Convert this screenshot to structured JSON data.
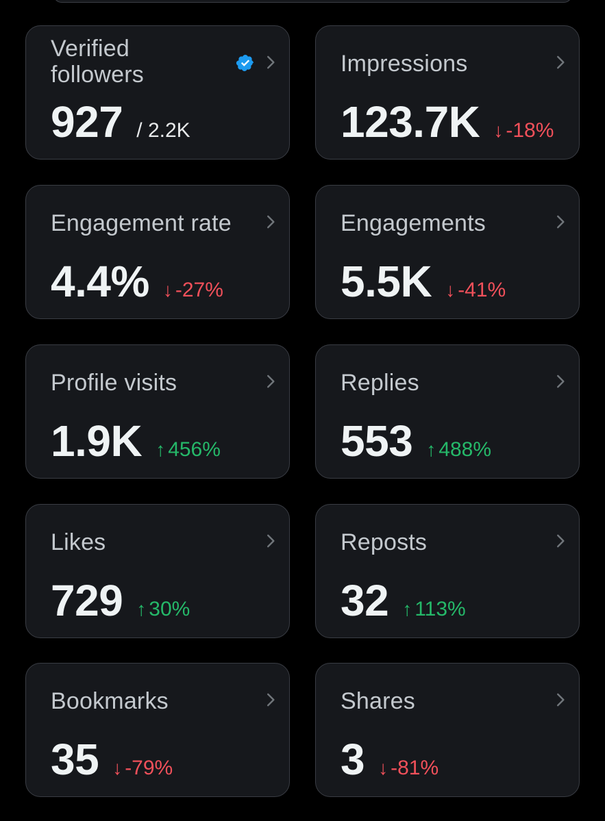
{
  "colors": {
    "background": "#000000",
    "card": "#16181c",
    "border": "#3a3d44",
    "title": "#c4c9ce",
    "value": "#eff3f4",
    "down": "#f0505a",
    "up": "#25b869",
    "verified": "#1d9bf0",
    "chevron": "#71767b"
  },
  "cards": [
    {
      "title_line1": "Verified",
      "title_line2": "followers",
      "value": "927",
      "sub": "/ 2.2K",
      "icon": "verified-badge-icon"
    },
    {
      "title": "Impressions",
      "value": "123.7K",
      "arrow": "↓",
      "delta": "-18%",
      "trend": "down"
    },
    {
      "title": "Engagement rate",
      "value": "4.4%",
      "arrow": "↓",
      "delta": "-27%",
      "trend": "down"
    },
    {
      "title": "Engagements",
      "value": "5.5K",
      "arrow": "↓",
      "delta": "-41%",
      "trend": "down"
    },
    {
      "title": "Profile visits",
      "value": "1.9K",
      "arrow": "↑",
      "delta": "456%",
      "trend": "up"
    },
    {
      "title": "Replies",
      "value": "553",
      "arrow": "↑",
      "delta": "488%",
      "trend": "up"
    },
    {
      "title": "Likes",
      "value": "729",
      "arrow": "↑",
      "delta": "30%",
      "trend": "up"
    },
    {
      "title": "Reposts",
      "value": "32",
      "arrow": "↑",
      "delta": "113%",
      "trend": "up"
    },
    {
      "title": "Bookmarks",
      "value": "35",
      "arrow": "↓",
      "delta": "-79%",
      "trend": "down"
    },
    {
      "title": "Shares",
      "value": "3",
      "arrow": "↓",
      "delta": "-81%",
      "trend": "down"
    }
  ]
}
